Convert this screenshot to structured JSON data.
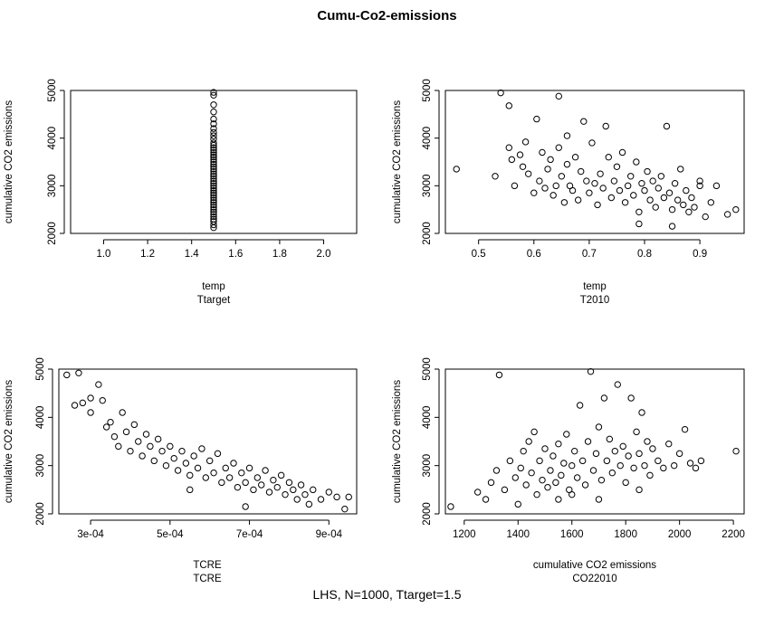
{
  "title": "Cumu-Co2-emissions",
  "footnote": "LHS, N=1000, Ttarget=1.5",
  "chart_data": [
    {
      "type": "scatter",
      "id": "ttarget",
      "xlabel": "temp",
      "xsub": "Ttarget",
      "ylabel": "cumulative CO2 emissions",
      "xlim": [
        0.85,
        2.15
      ],
      "ylim": [
        2000,
        5000
      ],
      "xticks": [
        1.0,
        1.2,
        1.4,
        1.6,
        1.8,
        2.0
      ],
      "xtick_labels": [
        "1.0",
        "1.2",
        "1.4",
        "1.6",
        "1.8",
        "2.0"
      ],
      "yticks": [
        2000,
        3000,
        4000,
        5000
      ],
      "ytick_labels": [
        "2000",
        "3000",
        "4000",
        "5000"
      ],
      "points": [
        [
          1.5,
          4960
        ],
        [
          1.5,
          4900
        ],
        [
          1.5,
          4700
        ],
        [
          1.5,
          4550
        ],
        [
          1.5,
          4400
        ],
        [
          1.5,
          4300
        ],
        [
          1.5,
          4200
        ],
        [
          1.5,
          4120
        ],
        [
          1.5,
          4050
        ],
        [
          1.5,
          3980
        ],
        [
          1.5,
          3900
        ],
        [
          1.5,
          3850
        ],
        [
          1.5,
          3800
        ],
        [
          1.5,
          3750
        ],
        [
          1.5,
          3700
        ],
        [
          1.5,
          3650
        ],
        [
          1.5,
          3600
        ],
        [
          1.5,
          3550
        ],
        [
          1.5,
          3500
        ],
        [
          1.5,
          3450
        ],
        [
          1.5,
          3400
        ],
        [
          1.5,
          3350
        ],
        [
          1.5,
          3300
        ],
        [
          1.5,
          3250
        ],
        [
          1.5,
          3200
        ],
        [
          1.5,
          3150
        ],
        [
          1.5,
          3100
        ],
        [
          1.5,
          3050
        ],
        [
          1.5,
          3000
        ],
        [
          1.5,
          2950
        ],
        [
          1.5,
          2900
        ],
        [
          1.5,
          2850
        ],
        [
          1.5,
          2800
        ],
        [
          1.5,
          2750
        ],
        [
          1.5,
          2700
        ],
        [
          1.5,
          2650
        ],
        [
          1.5,
          2600
        ],
        [
          1.5,
          2550
        ],
        [
          1.5,
          2500
        ],
        [
          1.5,
          2450
        ],
        [
          1.5,
          2400
        ],
        [
          1.5,
          2350
        ],
        [
          1.5,
          2300
        ],
        [
          1.5,
          2250
        ],
        [
          1.5,
          2180
        ],
        [
          1.5,
          2120
        ]
      ]
    },
    {
      "type": "scatter",
      "id": "t2010",
      "xlabel": "temp",
      "xsub": "T2010",
      "ylabel": "cumulative CO2 emissions",
      "xlim": [
        0.44,
        0.98
      ],
      "ylim": [
        2000,
        5000
      ],
      "xticks": [
        0.5,
        0.6,
        0.7,
        0.8,
        0.9
      ],
      "xtick_labels": [
        "0.5",
        "0.6",
        "0.7",
        "0.8",
        "0.9"
      ],
      "yticks": [
        2000,
        3000,
        4000,
        5000
      ],
      "ytick_labels": [
        "2000",
        "3000",
        "4000",
        "5000"
      ],
      "points": [
        [
          0.46,
          3350
        ],
        [
          0.53,
          3200
        ],
        [
          0.54,
          4950
        ],
        [
          0.555,
          4680
        ],
        [
          0.555,
          3800
        ],
        [
          0.56,
          3550
        ],
        [
          0.565,
          3000
        ],
        [
          0.575,
          3650
        ],
        [
          0.58,
          3400
        ],
        [
          0.59,
          3250
        ],
        [
          0.585,
          3920
        ],
        [
          0.6,
          2850
        ],
        [
          0.605,
          4400
        ],
        [
          0.61,
          3100
        ],
        [
          0.615,
          3700
        ],
        [
          0.62,
          2950
        ],
        [
          0.625,
          3350
        ],
        [
          0.63,
          3550
        ],
        [
          0.635,
          2800
        ],
        [
          0.64,
          3000
        ],
        [
          0.645,
          3800
        ],
        [
          0.645,
          4880
        ],
        [
          0.65,
          3200
        ],
        [
          0.655,
          2650
        ],
        [
          0.66,
          4050
        ],
        [
          0.66,
          3450
        ],
        [
          0.665,
          3000
        ],
        [
          0.67,
          2900
        ],
        [
          0.675,
          3600
        ],
        [
          0.68,
          2700
        ],
        [
          0.685,
          3300
        ],
        [
          0.69,
          4350
        ],
        [
          0.695,
          3100
        ],
        [
          0.7,
          2850
        ],
        [
          0.705,
          3900
        ],
        [
          0.71,
          3050
        ],
        [
          0.715,
          2600
        ],
        [
          0.72,
          3250
        ],
        [
          0.725,
          2950
        ],
        [
          0.73,
          4250
        ],
        [
          0.735,
          3600
        ],
        [
          0.74,
          2750
        ],
        [
          0.745,
          3100
        ],
        [
          0.75,
          3400
        ],
        [
          0.755,
          2900
        ],
        [
          0.76,
          3700
        ],
        [
          0.765,
          2650
        ],
        [
          0.77,
          3000
        ],
        [
          0.775,
          3200
        ],
        [
          0.78,
          2800
        ],
        [
          0.785,
          3500
        ],
        [
          0.79,
          2450
        ],
        [
          0.795,
          3050
        ],
        [
          0.8,
          2900
        ],
        [
          0.805,
          3300
        ],
        [
          0.81,
          2700
        ],
        [
          0.815,
          3100
        ],
        [
          0.82,
          2550
        ],
        [
          0.825,
          2950
        ],
        [
          0.83,
          3200
        ],
        [
          0.835,
          2750
        ],
        [
          0.84,
          4250
        ],
        [
          0.845,
          2850
        ],
        [
          0.85,
          2500
        ],
        [
          0.855,
          3050
        ],
        [
          0.86,
          2700
        ],
        [
          0.865,
          3350
        ],
        [
          0.87,
          2600
        ],
        [
          0.875,
          2900
        ],
        [
          0.88,
          2450
        ],
        [
          0.885,
          2750
        ],
        [
          0.89,
          2550
        ],
        [
          0.9,
          3000
        ],
        [
          0.91,
          2350
        ],
        [
          0.92,
          2650
        ],
        [
          0.93,
          3000
        ],
        [
          0.95,
          2400
        ],
        [
          0.965,
          2500
        ],
        [
          0.85,
          2150
        ],
        [
          0.79,
          2200
        ],
        [
          0.9,
          3100
        ]
      ]
    },
    {
      "type": "scatter",
      "id": "tcre",
      "xlabel": "TCRE",
      "xsub": "TCRE",
      "ylabel": "cumulative CO2 emissions",
      "xlim": [
        0.00022,
        0.00097
      ],
      "ylim": [
        2000,
        5000
      ],
      "xticks": [
        0.0003,
        0.0005,
        0.0007,
        0.0009
      ],
      "xtick_labels": [
        "3e-04",
        "5e-04",
        "7e-04",
        "9e-04"
      ],
      "yticks": [
        2000,
        3000,
        4000,
        5000
      ],
      "ytick_labels": [
        "2000",
        "3000",
        "4000",
        "5000"
      ],
      "points": [
        [
          0.00024,
          4880
        ],
        [
          0.00027,
          4920
        ],
        [
          0.00026,
          4250
        ],
        [
          0.00028,
          4300
        ],
        [
          0.0003,
          4400
        ],
        [
          0.0003,
          4100
        ],
        [
          0.00032,
          4680
        ],
        [
          0.00033,
          4350
        ],
        [
          0.00034,
          3800
        ],
        [
          0.00035,
          3900
        ],
        [
          0.00036,
          3600
        ],
        [
          0.00037,
          3400
        ],
        [
          0.00038,
          4100
        ],
        [
          0.00039,
          3700
        ],
        [
          0.0004,
          3300
        ],
        [
          0.00041,
          3850
        ],
        [
          0.00042,
          3500
        ],
        [
          0.00043,
          3200
        ],
        [
          0.00044,
          3650
        ],
        [
          0.00045,
          3400
        ],
        [
          0.00046,
          3100
        ],
        [
          0.00047,
          3550
        ],
        [
          0.00048,
          3300
        ],
        [
          0.00049,
          3000
        ],
        [
          0.0005,
          3400
        ],
        [
          0.00051,
          3150
        ],
        [
          0.00052,
          2900
        ],
        [
          0.00053,
          3300
        ],
        [
          0.00054,
          3050
        ],
        [
          0.00055,
          2800
        ],
        [
          0.00056,
          3200
        ],
        [
          0.00057,
          2950
        ],
        [
          0.00058,
          3350
        ],
        [
          0.00059,
          2750
        ],
        [
          0.0006,
          3100
        ],
        [
          0.00061,
          2850
        ],
        [
          0.00062,
          3250
        ],
        [
          0.00063,
          2650
        ],
        [
          0.00064,
          2950
        ],
        [
          0.00065,
          2750
        ],
        [
          0.00066,
          3050
        ],
        [
          0.00067,
          2550
        ],
        [
          0.00068,
          2850
        ],
        [
          0.00069,
          2650
        ],
        [
          0.0007,
          2950
        ],
        [
          0.00071,
          2500
        ],
        [
          0.00072,
          2750
        ],
        [
          0.00073,
          2600
        ],
        [
          0.00074,
          2900
        ],
        [
          0.00075,
          2450
        ],
        [
          0.00076,
          2700
        ],
        [
          0.00077,
          2550
        ],
        [
          0.00078,
          2800
        ],
        [
          0.00079,
          2400
        ],
        [
          0.0008,
          2650
        ],
        [
          0.00081,
          2500
        ],
        [
          0.00082,
          2300
        ],
        [
          0.00083,
          2600
        ],
        [
          0.00084,
          2400
        ],
        [
          0.00085,
          2200
        ],
        [
          0.00086,
          2500
        ],
        [
          0.00088,
          2300
        ],
        [
          0.0009,
          2450
        ],
        [
          0.00092,
          2350
        ],
        [
          0.00094,
          2100
        ],
        [
          0.00095,
          2350
        ],
        [
          0.00069,
          2150
        ],
        [
          0.00055,
          2500
        ]
      ]
    },
    {
      "type": "scatter",
      "id": "co22010",
      "xlabel": "cumulative CO2 emissions",
      "xsub": "CO22010",
      "ylabel": "cumulative CO2 emissions",
      "xlim": [
        1130,
        2240
      ],
      "ylim": [
        2000,
        5000
      ],
      "xticks": [
        1200,
        1400,
        1600,
        1800,
        2000,
        2200
      ],
      "xtick_labels": [
        "1200",
        "1400",
        "1600",
        "1800",
        "2000",
        "2200"
      ],
      "yticks": [
        2000,
        3000,
        4000,
        5000
      ],
      "ytick_labels": [
        "2000",
        "3000",
        "4000",
        "5000"
      ],
      "points": [
        [
          1150,
          2150
        ],
        [
          1250,
          2450
        ],
        [
          1280,
          2300
        ],
        [
          1300,
          2650
        ],
        [
          1320,
          2900
        ],
        [
          1330,
          4880
        ],
        [
          1350,
          2500
        ],
        [
          1370,
          3100
        ],
        [
          1390,
          2750
        ],
        [
          1400,
          2200
        ],
        [
          1410,
          2950
        ],
        [
          1420,
          3300
        ],
        [
          1430,
          2600
        ],
        [
          1440,
          3500
        ],
        [
          1450,
          2850
        ],
        [
          1460,
          3700
        ],
        [
          1470,
          2400
        ],
        [
          1480,
          3100
        ],
        [
          1490,
          2700
        ],
        [
          1500,
          3350
        ],
        [
          1510,
          2550
        ],
        [
          1520,
          2900
        ],
        [
          1530,
          3200
        ],
        [
          1540,
          2650
        ],
        [
          1550,
          3450
        ],
        [
          1560,
          2800
        ],
        [
          1570,
          3050
        ],
        [
          1580,
          3650
        ],
        [
          1590,
          2500
        ],
        [
          1600,
          3000
        ],
        [
          1610,
          3300
        ],
        [
          1620,
          2750
        ],
        [
          1630,
          4250
        ],
        [
          1640,
          3100
        ],
        [
          1650,
          2600
        ],
        [
          1660,
          3500
        ],
        [
          1670,
          4950
        ],
        [
          1680,
          2900
        ],
        [
          1690,
          3250
        ],
        [
          1700,
          3800
        ],
        [
          1710,
          2700
        ],
        [
          1720,
          4400
        ],
        [
          1730,
          3100
        ],
        [
          1740,
          3550
        ],
        [
          1750,
          2850
        ],
        [
          1760,
          3300
        ],
        [
          1770,
          4680
        ],
        [
          1780,
          3000
        ],
        [
          1790,
          3400
        ],
        [
          1800,
          2650
        ],
        [
          1810,
          3200
        ],
        [
          1820,
          4400
        ],
        [
          1830,
          2950
        ],
        [
          1840,
          3700
        ],
        [
          1850,
          3250
        ],
        [
          1860,
          4100
        ],
        [
          1870,
          3000
        ],
        [
          1880,
          3500
        ],
        [
          1890,
          2800
        ],
        [
          1900,
          3350
        ],
        [
          1920,
          3100
        ],
        [
          1940,
          2950
        ],
        [
          1960,
          3450
        ],
        [
          1980,
          3000
        ],
        [
          2000,
          3250
        ],
        [
          2020,
          3750
        ],
        [
          2040,
          3050
        ],
        [
          2060,
          2950
        ],
        [
          2080,
          3100
        ],
        [
          2210,
          3300
        ],
        [
          1600,
          2400
        ],
        [
          1700,
          2300
        ],
        [
          1850,
          2500
        ],
        [
          1550,
          2300
        ]
      ]
    }
  ]
}
